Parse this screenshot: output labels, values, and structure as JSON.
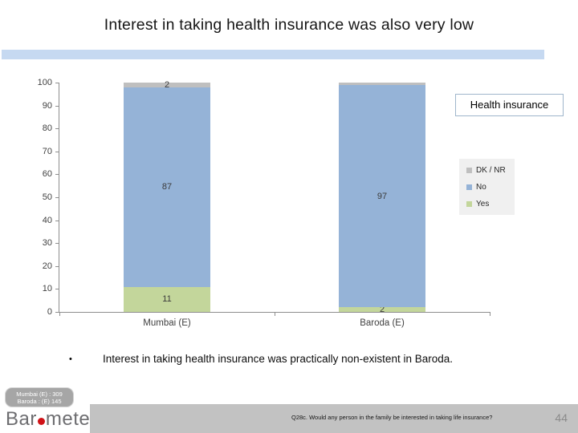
{
  "slide": {
    "title": "Interest in taking health insurance was also very low",
    "callout_label": "Health insurance",
    "bullet_marker": "•",
    "bullet_text": "Interest in taking health insurance was practically non-existent in Baroda.",
    "sample_note": {
      "line1": "Mumbai (E) : 309",
      "line2": "Baroda : (E) 145"
    },
    "logo": {
      "prefix": "Bar",
      "suffix": "meter",
      "dot_color": "#d01217"
    },
    "footer_question": "Q28c. Would any person in the family be interested in taking life insurance?",
    "page_number": "44"
  },
  "chart_data": {
    "type": "bar",
    "stacked": true,
    "title": "",
    "xlabel": "",
    "ylabel": "",
    "categories": [
      "Mumbai (E)",
      "Baroda (E)"
    ],
    "series": [
      {
        "name": "Yes",
        "color": "#c3d69b",
        "values": [
          11,
          2
        ],
        "data_labels": [
          "11",
          "2"
        ]
      },
      {
        "name": "No",
        "color": "#95b3d7",
        "values": [
          87,
          97
        ],
        "data_labels": [
          "87",
          "97"
        ]
      },
      {
        "name": "DK / NR",
        "color": "#bfbfbf",
        "values": [
          2,
          1
        ],
        "data_labels": [
          "2",
          ""
        ]
      }
    ],
    "ylim": [
      0,
      100
    ],
    "yticks": [
      0,
      10,
      20,
      30,
      40,
      50,
      60,
      70,
      80,
      90,
      100
    ],
    "grid": false,
    "legend": {
      "position": "right",
      "order": [
        "DK / NR",
        "No",
        "Yes"
      ],
      "background": "#f0f0f0"
    }
  }
}
